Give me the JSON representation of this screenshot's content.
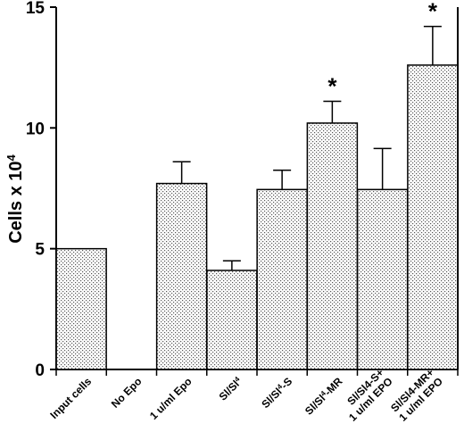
{
  "chart_data": {
    "type": "bar",
    "ylabel": "Cells x 10",
    "ylabel_superscript": "4",
    "ylim": [
      0,
      15
    ],
    "yticks": [
      "0",
      "5",
      "10",
      "15"
    ],
    "categories": [
      {
        "lines": [
          "Input cells"
        ]
      },
      {
        "lines": [
          "No Epo"
        ]
      },
      {
        "lines": [
          "1 u/ml Epo"
        ]
      },
      {
        "lines": [
          {
            "t": "Sl/Sl"
          },
          {
            "t": "4",
            "sup": true
          }
        ]
      },
      {
        "lines": [
          {
            "t": "Sl/Sl"
          },
          {
            "t": "4",
            "sup": true
          },
          {
            "t": "-S"
          }
        ]
      },
      {
        "lines": [
          {
            "t": "Sl/Sl"
          },
          {
            "t": "4",
            "sup": true
          },
          {
            "t": "-MR"
          }
        ]
      },
      {
        "lines": [
          "Sl/Sl4-S+",
          "1 u/ml EPO"
        ]
      },
      {
        "lines": [
          "Sl/Sl4-MR+",
          "1 u/ml EPO"
        ]
      }
    ],
    "values": [
      5.0,
      0.0,
      7.7,
      4.1,
      7.45,
      10.2,
      7.45,
      12.6
    ],
    "errors": [
      null,
      null,
      0.9,
      0.4,
      0.8,
      0.9,
      1.7,
      1.6
    ],
    "significance": [
      null,
      null,
      null,
      null,
      null,
      "*",
      null,
      "*"
    ],
    "bar_pattern": "stipple",
    "grid": false
  }
}
